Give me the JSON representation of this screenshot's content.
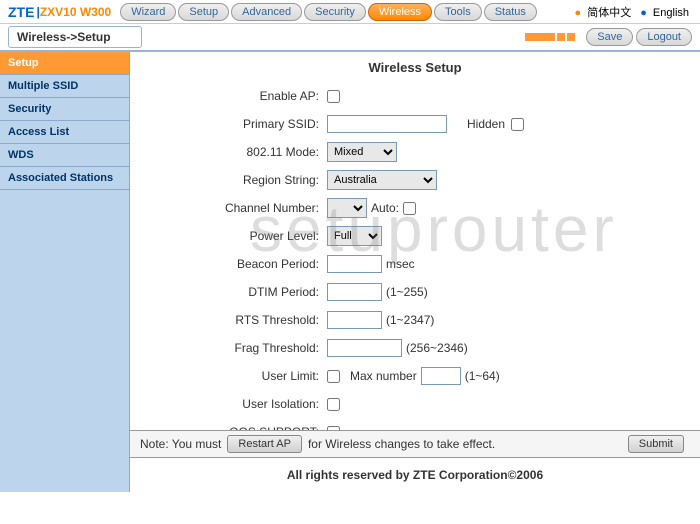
{
  "brand": "ZTE",
  "model": "ZXV10 W300",
  "tabs": [
    "Wizard",
    "Setup",
    "Advanced",
    "Security",
    "Wireless",
    "Tools",
    "Status"
  ],
  "active_tab": "Wireless",
  "lang": {
    "cn": "简体中文",
    "en": "English"
  },
  "breadcrumb": "Wireless->Setup",
  "actions": {
    "save": "Save",
    "logout": "Logout"
  },
  "sidebar": {
    "items": [
      "Setup",
      "Multiple SSID",
      "Security",
      "Access List",
      "WDS",
      "Associated Stations"
    ],
    "active": "Setup"
  },
  "page_title": "Wireless Setup",
  "form": {
    "enable_ap": {
      "label": "Enable AP:"
    },
    "primary_ssid": {
      "label": "Primary SSID:",
      "value": "",
      "hidden_label": "Hidden"
    },
    "mode_80211": {
      "label": "802.11 Mode:",
      "value": "Mixed",
      "options": [
        "Mixed"
      ]
    },
    "region": {
      "label": "Region String:",
      "value": "Australia",
      "options": [
        "Australia"
      ]
    },
    "channel": {
      "label": "Channel Number:",
      "value": "",
      "auto_label": "Auto:"
    },
    "power": {
      "label": "Power Level:",
      "value": "Full",
      "options": [
        "Full"
      ]
    },
    "beacon": {
      "label": "Beacon Period:",
      "value": "",
      "unit": "msec"
    },
    "dtim": {
      "label": "DTIM Period:",
      "value": "",
      "range": "(1~255)"
    },
    "rts": {
      "label": "RTS Threshold:",
      "value": "",
      "range": "(1~2347)"
    },
    "frag": {
      "label": "Frag Threshold:",
      "value": "",
      "range": "(256~2346)"
    },
    "user_limit": {
      "label": "User Limit:",
      "max_label": "Max number",
      "max_value": "",
      "range": "(1~64)"
    },
    "user_isolation": {
      "label": "User Isolation:"
    },
    "qos": {
      "label": "QOS SUPPORT:"
    }
  },
  "note": {
    "prefix": "Note: You must",
    "button": "Restart AP",
    "suffix": "for Wireless changes to take effect."
  },
  "submit": "Submit",
  "footer": "All rights reserved by ZTE Corporation©2006",
  "watermark": "setuprouter",
  "colors": {
    "brand": "#0066cc",
    "accent": "#ff8800",
    "sidebar_bg": "#bdd5ec",
    "sidebar_active": "#ff9933",
    "border": "#99b3d6"
  }
}
